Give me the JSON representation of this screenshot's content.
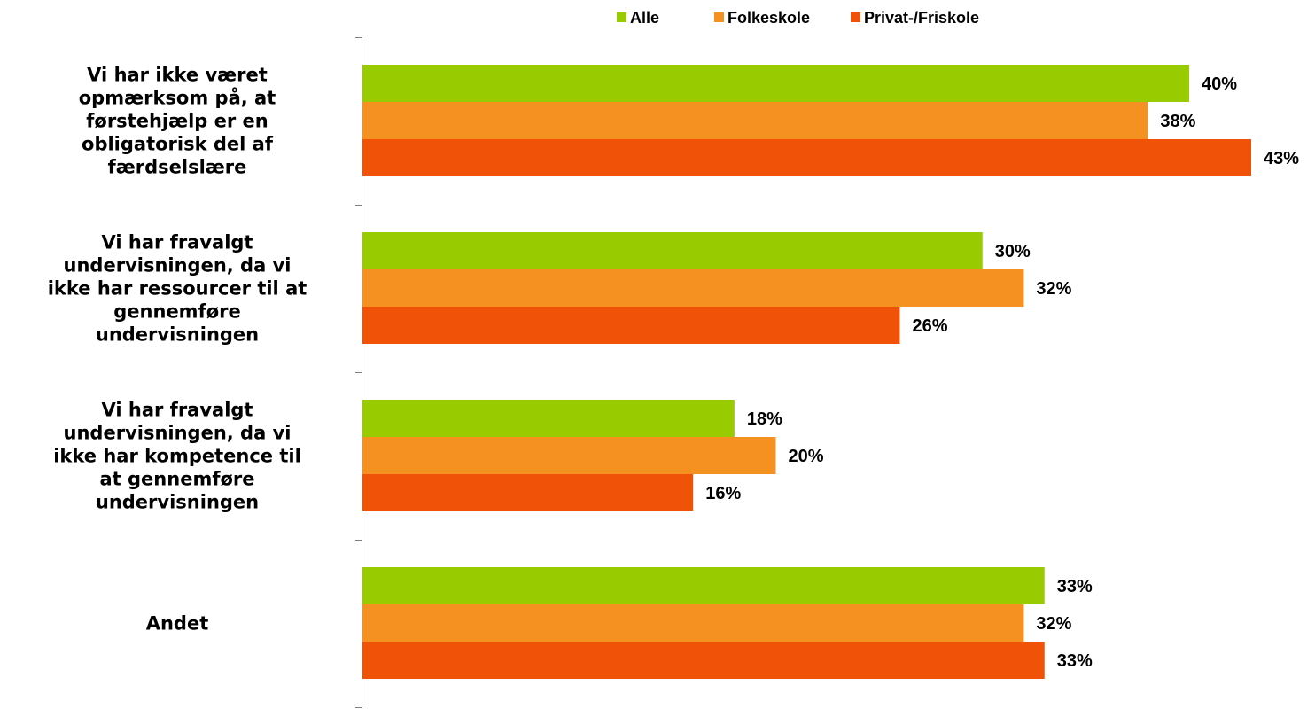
{
  "chart_data": {
    "type": "bar",
    "orientation": "horizontal",
    "categories": [
      [
        "Vi har ikke været",
        "opmærksom på, at",
        "førstehjælp er en",
        "obligatorisk del af",
        "færdselslære"
      ],
      [
        "Vi har fravalgt",
        "undervisningen, da vi",
        "ikke har ressourcer til at",
        "gennemføre",
        "undervisningen"
      ],
      [
        "Vi har fravalgt",
        "undervisningen, da vi",
        "ikke har kompetence til",
        "at gennemføre",
        "undervisningen"
      ],
      [
        "Andet"
      ]
    ],
    "series": [
      {
        "name": "Alle",
        "color": "#99cc00",
        "values": [
          40,
          30,
          18,
          33
        ],
        "labels": [
          "40%",
          "30%",
          "18%",
          "33%"
        ]
      },
      {
        "name": "Folkeskole",
        "color": "#f59120",
        "values": [
          38,
          32,
          20,
          32
        ],
        "labels": [
          "38%",
          "32%",
          "20%",
          "32%"
        ]
      },
      {
        "name": "Privat-/Friskole",
        "color": "#f05308",
        "values": [
          43,
          26,
          16,
          33
        ],
        "labels": [
          "43%",
          "26%",
          "16%",
          "33%"
        ]
      }
    ],
    "xlim": [
      0,
      45
    ],
    "grid": false,
    "legend": "top"
  }
}
